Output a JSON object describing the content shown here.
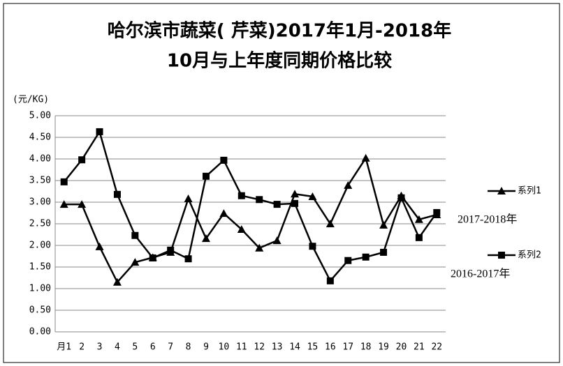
{
  "chart_data": {
    "type": "line",
    "title": [
      "哈尔滨市蔬菜( 芹菜)2017年1月-2018年",
      "10月与上年度同期价格比较"
    ],
    "y_label": "(元/KG)",
    "categories": [
      "月1",
      "2",
      "3",
      "4",
      "5",
      "6",
      "7",
      "8",
      "9",
      "10",
      "11",
      "12",
      "13",
      "14",
      "15",
      "16",
      "17",
      "18",
      "19",
      "20",
      "21",
      "22"
    ],
    "series": [
      {
        "name": "系列1",
        "color": "#000000",
        "marker": "triangle",
        "values": [
          2.95,
          2.95,
          1.97,
          1.15,
          1.61,
          1.72,
          1.84,
          3.08,
          2.16,
          2.74,
          2.37,
          1.94,
          2.11,
          3.19,
          3.13,
          2.5,
          3.39,
          4.02,
          2.47,
          3.15,
          2.6,
          2.71
        ]
      },
      {
        "name": "系列2",
        "color": "#000000",
        "marker": "square",
        "values": [
          3.47,
          3.98,
          4.63,
          3.18,
          2.23,
          1.71,
          1.89,
          1.69,
          3.6,
          3.97,
          3.15,
          3.06,
          2.95,
          2.97,
          1.98,
          1.18,
          1.65,
          1.73,
          1.84,
          3.1,
          2.18,
          2.76
        ]
      }
    ],
    "annotations": [
      "2017-2018年",
      "2016-2017年"
    ],
    "ylim": [
      0,
      5
    ],
    "yticks": [
      {
        "value": 0,
        "label": "0.00"
      },
      {
        "value": 0.5,
        "label": "0.50"
      },
      {
        "value": 1,
        "label": "1.00"
      },
      {
        "value": 1.5,
        "label": "1.50"
      },
      {
        "value": 2,
        "label": "2.00"
      },
      {
        "value": 2.5,
        "label": "2.50"
      },
      {
        "value": 3,
        "label": "3.00"
      },
      {
        "value": 3.5,
        "label": "3.50"
      },
      {
        "value": 4,
        "label": "4.00"
      },
      {
        "value": 4.5,
        "label": "4.50"
      },
      {
        "value": 5,
        "label": "5.00"
      }
    ],
    "grid": true
  }
}
